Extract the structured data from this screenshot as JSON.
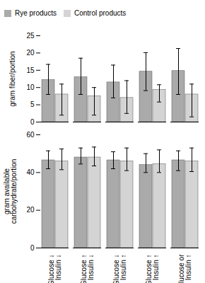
{
  "chart_data": [
    {
      "type": "bar",
      "categories": [
        "Glucose ↓\nInsulin ↓",
        "Glucose ↑\nInsulin ↓",
        "Glucose ↓\nInsulin ↑",
        "Glucose ↑\nInsulin ↑",
        "Glucose or\nInsulin ↑"
      ],
      "series": [
        {
          "name": "Rye products",
          "color": "#aaaaaa",
          "values": [
            12.2,
            13.0,
            11.5,
            14.6,
            14.8
          ],
          "err_lo": [
            4.2,
            5.0,
            4.5,
            5.5,
            6.8
          ],
          "err_hi": [
            4.5,
            5.5,
            5.0,
            5.5,
            6.5
          ]
        },
        {
          "name": "Control products",
          "color": "#d4d4d4",
          "values": [
            8.0,
            7.5,
            7.0,
            9.3,
            8.0
          ],
          "err_lo": [
            6.0,
            5.5,
            4.5,
            3.5,
            6.5
          ],
          "err_hi": [
            3.0,
            2.5,
            5.0,
            1.5,
            3.0
          ]
        }
      ],
      "ylabel": "gram fiber/portion",
      "ylim": [
        0,
        25
      ],
      "yticks": [
        0,
        5,
        10,
        15,
        20,
        25
      ],
      "legend": "upper left",
      "tick_labels": "y"
    },
    {
      "type": "bar",
      "categories": [
        "Glucose ↓\nInsulin ↓",
        "Glucose ↑\nInsulin ↓",
        "Glucose ↓\nInsulin ↑",
        "Glucose ↑\nInsulin ↑",
        "Glucose or\nInsulin ↑"
      ],
      "series": [
        {
          "name": "Rye products",
          "color": "#aaaaaa",
          "values": [
            46.5,
            48.0,
            46.5,
            44.0,
            46.5
          ],
          "err_lo": [
            4.5,
            3.5,
            4.5,
            4.0,
            5.5
          ],
          "err_hi": [
            5.0,
            5.0,
            4.5,
            6.0,
            5.0
          ]
        },
        {
          "name": "Control products",
          "color": "#d4d4d4",
          "values": [
            46.0,
            48.0,
            46.0,
            44.5,
            46.0
          ],
          "err_lo": [
            4.5,
            4.5,
            5.0,
            4.5,
            5.5
          ],
          "err_hi": [
            6.5,
            5.5,
            7.0,
            7.5,
            7.0
          ]
        }
      ],
      "ylabel": "gram available\ncarbohydrate/portion",
      "ylim": [
        0,
        60
      ],
      "yticks": [
        0,
        20,
        40,
        60
      ]
    }
  ]
}
